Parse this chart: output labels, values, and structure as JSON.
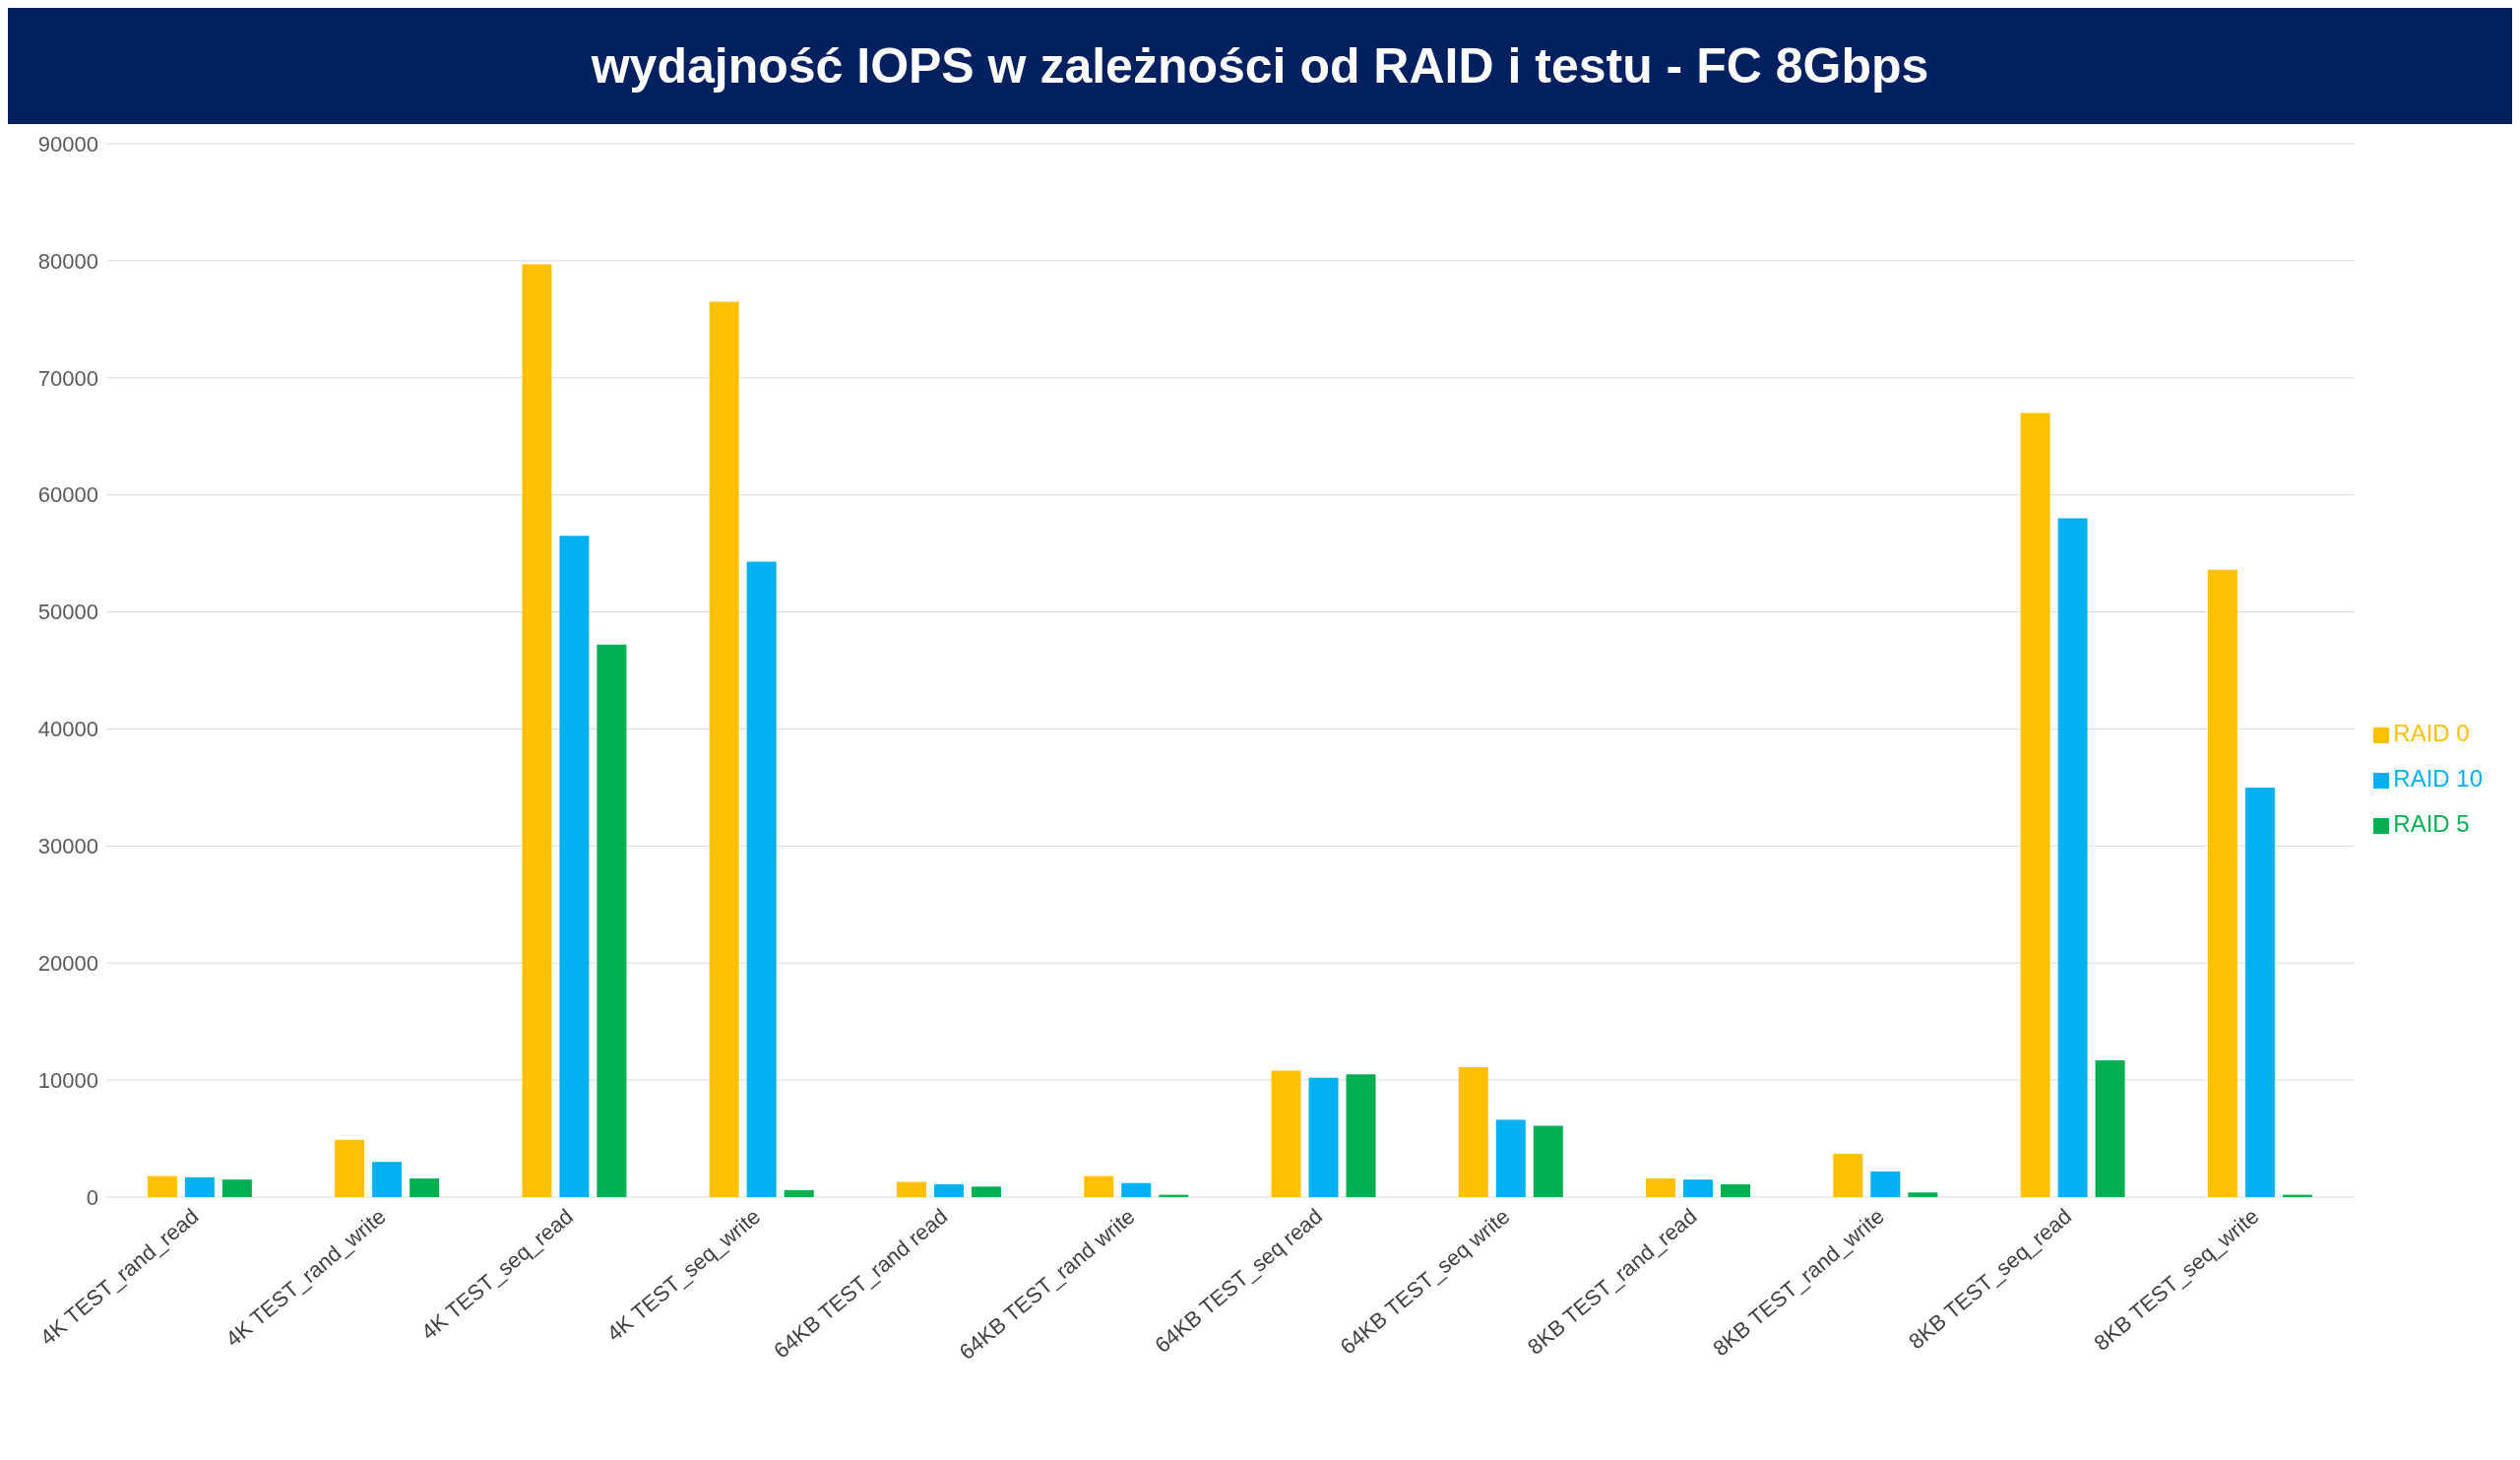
{
  "chart_data": {
    "type": "bar",
    "title": "wydajność IOPS w zależności od RAID i testu - FC 8Gbps",
    "categories": [
      "4K TEST_rand_read",
      "4K TEST_rand_write",
      "4K TEST_seq_read",
      "4K TEST_seq_write",
      "64KB TEST_rand read",
      "64KB TEST_rand write",
      "64KB TEST_seq read",
      "64KB TEST_seq write",
      "8KB TEST_rand_read",
      "8KB TEST_rand_write",
      "8KB TEST_seq_read",
      "8KB TEST_seq_write"
    ],
    "series": [
      {
        "name": "RAID 0",
        "color": "#ffc000",
        "values": [
          1800,
          4900,
          79700,
          76500,
          1300,
          1800,
          10800,
          11100,
          1600,
          3700,
          67000,
          53600
        ]
      },
      {
        "name": "RAID 10",
        "color": "#00b0f0",
        "values": [
          1700,
          3000,
          56500,
          54300,
          1100,
          1200,
          10200,
          6600,
          1500,
          2200,
          58000,
          35000
        ]
      },
      {
        "name": "RAID 5",
        "color": "#00b050",
        "values": [
          1500,
          1600,
          47200,
          600,
          900,
          200,
          10500,
          6100,
          1100,
          400,
          11700,
          200
        ]
      }
    ],
    "ylim": [
      0,
      90000
    ],
    "yticks": [
      0,
      10000,
      20000,
      30000,
      40000,
      50000,
      60000,
      70000,
      80000,
      90000
    ],
    "grid": "y",
    "legend": "right"
  }
}
